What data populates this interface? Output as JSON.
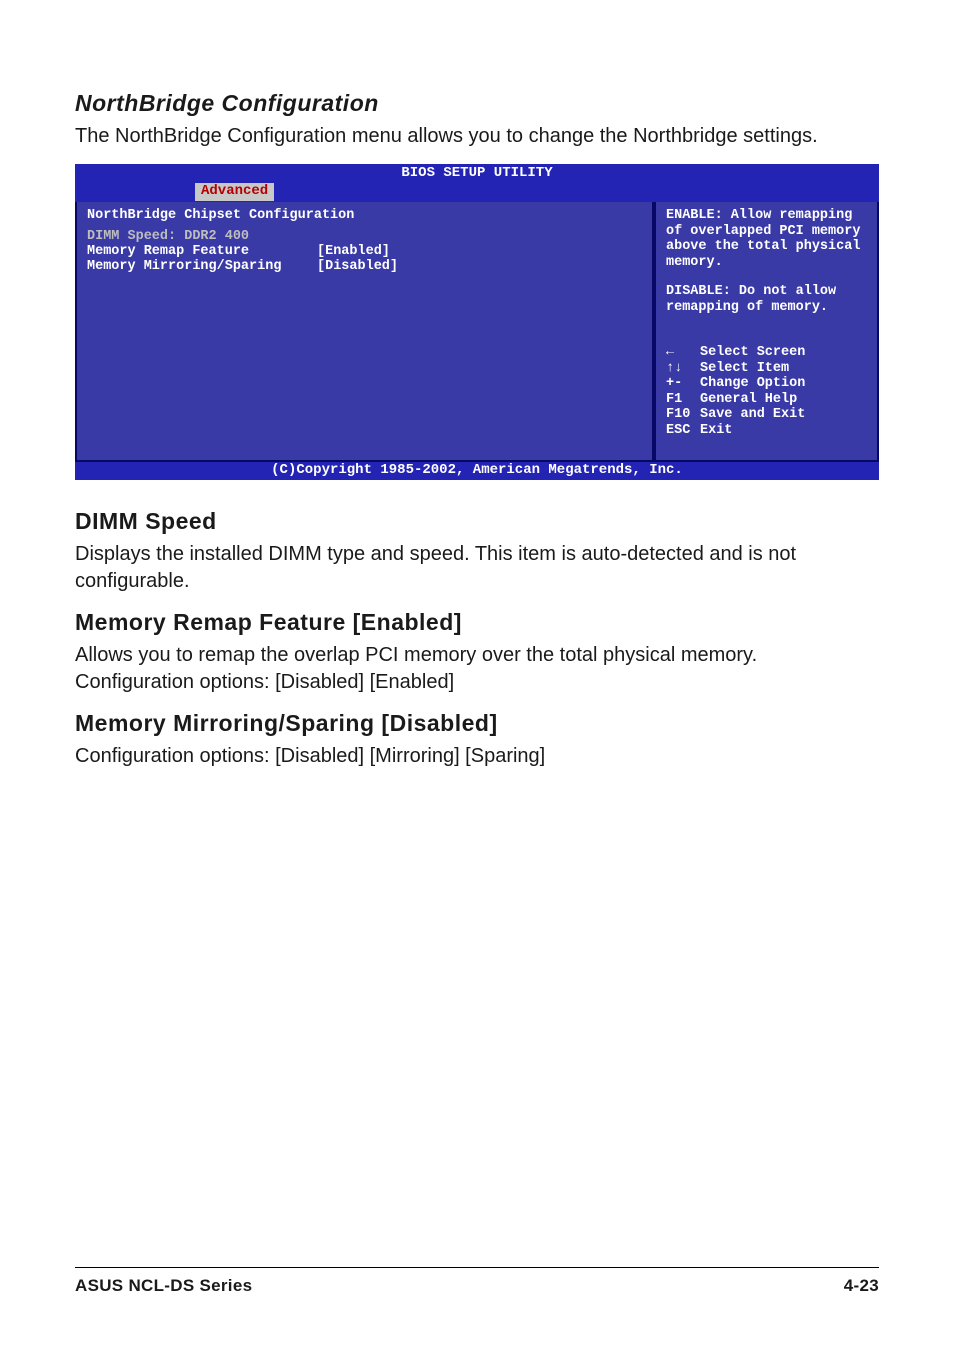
{
  "section1": {
    "title": "NorthBridge Configuration",
    "text": "The NorthBridge Configuration menu allows you to change the Northbridge settings."
  },
  "bios": {
    "window_title": "BIOS SETUP UTILITY",
    "tab": "Advanced",
    "heading": "NorthBridge Chipset Configuration",
    "dimm_line": "DIMM Speed: DDR2 400",
    "row1_label": "Memory Remap Feature",
    "row1_value": "[Enabled]",
    "row2_label": "Memory Mirroring/Sparing",
    "row2_value": "[Disabled]",
    "help1": "ENABLE: Allow remapping of overlapped PCI memory above the total physical memory.",
    "help2": "DISABLE: Do not allow remapping of memory.",
    "keys": {
      "left_arrow": "←",
      "updown_arrow": "↑↓",
      "pm": "+-",
      "f1": "F1",
      "f10": "F10",
      "esc": "ESC",
      "select_screen": "Select Screen",
      "select_item": "Select Item",
      "change_option": "Change Option",
      "general_help": "General Help",
      "save_exit": "Save and Exit",
      "exit": "Exit"
    },
    "footer": "(C)Copyright 1985-2002, American Megatrends, Inc."
  },
  "dimm": {
    "title": "DIMM Speed",
    "text": "Displays the installed DIMM type and speed. This item is auto-detected and is not configurable."
  },
  "remap": {
    "title": "Memory Remap Feature [Enabled]",
    "text": "Allows you to remap the overlap PCI memory over the total physical memory. Configuration options: [Disabled] [Enabled]"
  },
  "mirror": {
    "title": "Memory Mirroring/Sparing [Disabled]",
    "text": "Configuration options: [Disabled] [Mirroring] [Sparing]"
  },
  "footer": {
    "left": "ASUS NCL-DS Series",
    "right": "4-23"
  },
  "colors": {
    "bios_bar": "#2323b4",
    "bios_panel": "#3a3aa6",
    "bios_border": "#070766",
    "tab_bg": "#c8c8c8",
    "tab_fg": "#b40000",
    "dimm_grey": "#bdbdbd"
  }
}
